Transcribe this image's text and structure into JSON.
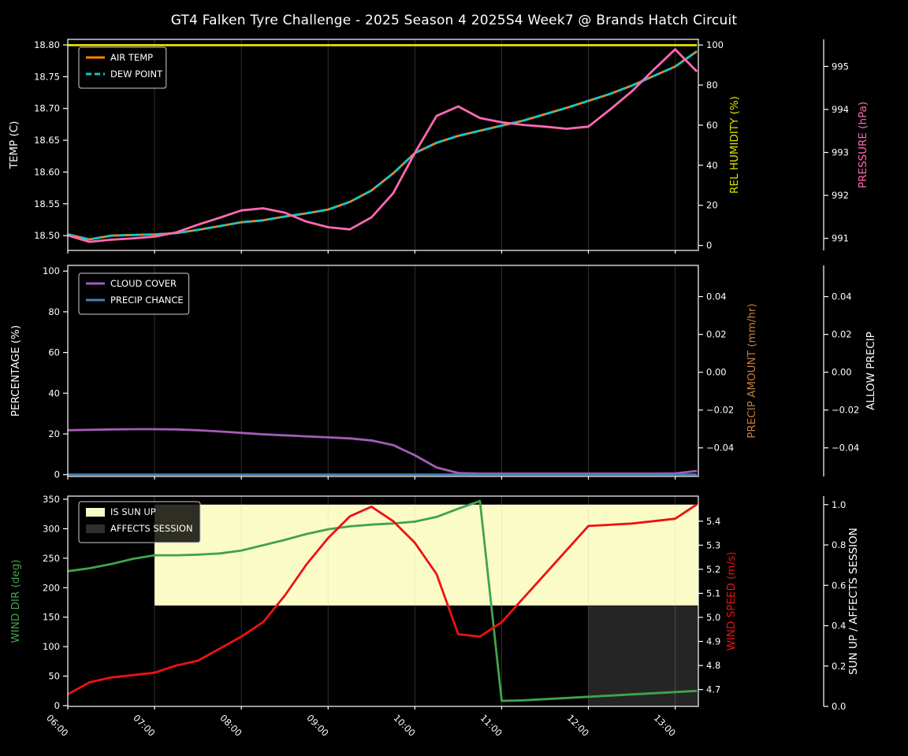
{
  "title": "GT4 Falken Tyre Challenge - 2025 Season 4 2025S4 Week7 @ Brands Hatch Circuit",
  "x_axis": {
    "range_hours": [
      6.0,
      13.2667
    ],
    "tick_hours": [
      6,
      7,
      8,
      9,
      10,
      11,
      12,
      13
    ],
    "tick_labels": [
      "06:00",
      "07:00",
      "08:00",
      "09:00",
      "10:00",
      "11:00",
      "12:00",
      "13:00"
    ],
    "grid": "vertical-hourly"
  },
  "chart_data": [
    {
      "type": "line",
      "panel": "temperature-humidity-pressure",
      "legend_position": "upper-left",
      "x_hours": [
        6.0,
        6.25,
        6.5,
        6.75,
        7.0,
        7.25,
        7.5,
        7.75,
        8.0,
        8.25,
        8.5,
        8.75,
        9.0,
        9.25,
        9.5,
        9.75,
        10.0,
        10.25,
        10.5,
        10.75,
        11.0,
        11.25,
        11.5,
        11.75,
        12.0,
        12.25,
        12.5,
        12.75,
        13.0,
        13.25
      ],
      "axes": {
        "left": {
          "label": "TEMP (C)",
          "color": "#ffffff",
          "range": [
            18.4767,
            18.8087
          ],
          "tick_values": [
            18.5,
            18.55,
            18.6,
            18.65,
            18.7,
            18.75,
            18.8
          ],
          "tick_labels": [
            "18.50",
            "18.55",
            "18.60",
            "18.65",
            "18.70",
            "18.75",
            "18.80"
          ]
        },
        "right1": {
          "label": "REL HUMIDITY (%)",
          "color": "#e3e300",
          "range": [
            -2.5,
            102.8
          ],
          "tick_values": [
            0,
            20,
            40,
            60,
            80,
            100
          ],
          "tick_labels": [
            "0",
            "20",
            "40",
            "60",
            "80",
            "100"
          ]
        },
        "right2": {
          "label": "PRESSURE (hPa)",
          "color": "#ff69b4",
          "range": [
            990.72,
            995.63
          ],
          "tick_values": [
            991,
            992,
            993,
            994,
            995
          ],
          "tick_labels": [
            "991",
            "992",
            "993",
            "994",
            "995"
          ]
        }
      },
      "series": [
        {
          "name": "AIR TEMP",
          "axis": "left",
          "color": "#ff820d",
          "dash": false,
          "y": [
            18.502,
            18.494,
            18.5,
            18.501,
            18.502,
            18.504,
            18.509,
            18.515,
            18.521,
            18.524,
            18.53,
            18.535,
            18.541,
            18.553,
            18.571,
            18.598,
            18.63,
            18.646,
            18.657,
            18.665,
            18.673,
            18.681,
            18.691,
            18.701,
            18.712,
            18.723,
            18.736,
            18.751,
            18.766,
            18.79
          ]
        },
        {
          "name": "DEW POINT",
          "axis": "left",
          "color": "#12c7c7",
          "dash": true,
          "y": [
            18.502,
            18.494,
            18.5,
            18.501,
            18.502,
            18.504,
            18.509,
            18.515,
            18.521,
            18.524,
            18.53,
            18.535,
            18.541,
            18.553,
            18.571,
            18.598,
            18.63,
            18.646,
            18.657,
            18.665,
            18.673,
            18.681,
            18.691,
            18.701,
            18.712,
            18.723,
            18.736,
            18.751,
            18.766,
            18.79
          ]
        },
        {
          "name": "REL HUMIDITY",
          "axis": "right1",
          "color": "#e3e300",
          "dash": false,
          "x": [
            6.0,
            13.25
          ],
          "y": [
            99.9,
            99.9
          ]
        },
        {
          "name": "PRESSURE",
          "axis": "right2",
          "color": "#ff69b4",
          "dash": false,
          "y": [
            991.07,
            990.92,
            990.97,
            991.0,
            991.04,
            991.14,
            991.32,
            991.48,
            991.65,
            991.7,
            991.6,
            991.39,
            991.26,
            991.21,
            991.49,
            992.05,
            992.99,
            993.85,
            994.07,
            993.8,
            993.7,
            993.64,
            993.6,
            993.55,
            993.6,
            994.0,
            994.42,
            994.92,
            995.4,
            994.88
          ]
        }
      ],
      "legend": [
        {
          "label": "AIR TEMP",
          "swatch": "line",
          "color": "#ff820d",
          "dash": false
        },
        {
          "label": "DEW POINT",
          "swatch": "line",
          "color": "#12c7c7",
          "dash": true
        }
      ],
      "fills": []
    },
    {
      "type": "line",
      "panel": "cloud-precipitation",
      "legend_position": "upper-left",
      "x_hours": [
        6.0,
        6.25,
        6.5,
        6.75,
        7.0,
        7.25,
        7.5,
        7.75,
        8.0,
        8.25,
        8.5,
        8.75,
        9.0,
        9.25,
        9.5,
        9.75,
        10.0,
        10.25,
        10.5,
        10.75,
        11.0,
        11.25,
        11.5,
        11.75,
        12.0,
        12.25,
        12.5,
        12.75,
        13.0,
        13.25
      ],
      "axes": {
        "left": {
          "label": "PERCENTAGE (%)",
          "color": "#ffffff",
          "range": [
            -0.9,
            102.8
          ],
          "tick_values": [
            0,
            20,
            40,
            60,
            80,
            100
          ],
          "tick_labels": [
            "0",
            "20",
            "40",
            "60",
            "80",
            "100"
          ]
        },
        "right1": {
          "label": "PRECIP AMOUNT (mm/hr)",
          "color": "#c87d3a",
          "range": [
            -0.0551,
            0.0565
          ],
          "tick_values": [
            0.04,
            0.02,
            0.0,
            -0.02,
            -0.04
          ],
          "tick_labels": [
            "0.04",
            "0.02",
            "0.00",
            "−0.02",
            "−0.04"
          ]
        },
        "right2": {
          "label": "ALLOW PRECIP",
          "color": "#ffffff",
          "range": [
            -0.0551,
            0.0565
          ],
          "tick_values": [
            0.04,
            0.02,
            0.0,
            -0.02,
            -0.04
          ],
          "tick_labels": [
            "0.04",
            "0.02",
            "0.00",
            "−0.02",
            "−0.04"
          ]
        }
      },
      "series": [
        {
          "name": "CLOUD COVER",
          "axis": "left",
          "color": "#a55cb8",
          "dash": false,
          "y": [
            21.8,
            22.0,
            22.2,
            22.3,
            22.3,
            22.2,
            21.8,
            21.2,
            20.5,
            19.8,
            19.3,
            18.8,
            18.3,
            17.8,
            16.8,
            14.5,
            9.5,
            3.5,
            0.8,
            0.5,
            0.5,
            0.5,
            0.5,
            0.5,
            0.5,
            0.5,
            0.5,
            0.5,
            0.6,
            1.8
          ]
        },
        {
          "name": "PRECIP CHANCE",
          "axis": "left",
          "color": "#4682b4",
          "dash": false,
          "x": [
            6.0,
            13.25
          ],
          "y": [
            0,
            0
          ]
        }
      ],
      "legend": [
        {
          "label": "CLOUD COVER",
          "swatch": "line",
          "color": "#a55cb8",
          "dash": false
        },
        {
          "label": "PRECIP CHANCE",
          "swatch": "line",
          "color": "#4682b4",
          "dash": false
        }
      ],
      "fills": []
    },
    {
      "type": "line",
      "panel": "wind-sun",
      "legend_position": "upper-left",
      "x_hours": [
        6.0,
        6.25,
        6.5,
        6.75,
        7.0,
        7.25,
        7.5,
        7.75,
        8.0,
        8.25,
        8.5,
        8.75,
        9.0,
        9.25,
        9.5,
        9.75,
        10.0,
        10.25,
        10.5,
        10.75,
        11.0,
        11.25,
        11.5,
        11.75,
        12.0,
        12.25,
        12.5,
        12.75,
        13.0,
        13.25
      ],
      "axes": {
        "left": {
          "label": "WIND DIR (deg)",
          "color": "#3fa54a",
          "range": [
            -1.34,
            355.3
          ],
          "tick_values": [
            0,
            50,
            100,
            150,
            200,
            250,
            300,
            350
          ],
          "tick_labels": [
            "0",
            "50",
            "100",
            "150",
            "200",
            "250",
            "300",
            "350"
          ]
        },
        "right1": {
          "label": "WIND SPEED (m/s)",
          "color": "#ee1111",
          "range": [
            4.63,
            5.504
          ],
          "tick_values": [
            4.7,
            4.8,
            4.9,
            5.0,
            5.1,
            5.2,
            5.3,
            5.4
          ],
          "tick_labels": [
            "4.7",
            "4.8",
            "4.9",
            "5.0",
            "5.1",
            "5.2",
            "5.3",
            "5.4"
          ]
        },
        "right2": {
          "label": "SUN UP / AFFECTS SESSION",
          "color": "#ffffff",
          "range": [
            0,
            1.042
          ],
          "tick_values": [
            0.0,
            0.2,
            0.4,
            0.6,
            0.8,
            1.0
          ],
          "tick_labels": [
            "0.0",
            "0.2",
            "0.4",
            "0.6",
            "0.8",
            "1.0"
          ]
        }
      },
      "series": [
        {
          "name": "WIND DIR",
          "axis": "left",
          "color": "#3fa54a",
          "dash": false,
          "y": [
            228,
            233,
            240,
            249,
            255,
            255,
            256,
            258,
            263,
            272,
            281,
            291,
            299,
            304,
            307,
            309,
            312,
            320,
            334,
            347,
            8,
            9,
            11,
            13,
            15,
            17,
            19,
            21,
            23,
            25
          ]
        },
        {
          "name": "WIND SPEED",
          "axis": "right1",
          "color": "#ee1111",
          "dash": false,
          "y": [
            4.68,
            4.73,
            4.75,
            4.76,
            4.77,
            4.8,
            4.82,
            4.87,
            4.92,
            4.98,
            5.09,
            5.22,
            5.33,
            5.42,
            5.46,
            5.4,
            5.31,
            5.18,
            4.93,
            4.92,
            4.98,
            5.08,
            5.18,
            5.28,
            5.38,
            5.385,
            5.39,
            5.4,
            5.41,
            5.47
          ]
        }
      ],
      "legend": [
        {
          "label": "IS SUN UP",
          "swatch": "patch",
          "color": "#fbfbc8"
        },
        {
          "label": "AFFECTS SESSION",
          "swatch": "patch",
          "color": "#2e2e2e"
        }
      ],
      "fills": [
        {
          "name": "is-sun-up-region",
          "axis": "right2",
          "x": [
            7.0,
            13.2667
          ],
          "y": [
            0.5,
            1.0
          ],
          "color": "#fbfbc8"
        },
        {
          "name": "affects-session-region",
          "axis": "right2",
          "x": [
            12.0,
            13.2667
          ],
          "y": [
            0.0,
            0.5
          ],
          "color": "#252525"
        }
      ]
    }
  ],
  "colors": {
    "background": "#000000",
    "spine": "#ffffff",
    "tick_text": "#ffffff",
    "grid": "rgba(190,190,190,0.25)",
    "legend_border": "#cfcfcf",
    "legend_bg": "rgba(0,0,0,0.82)"
  }
}
